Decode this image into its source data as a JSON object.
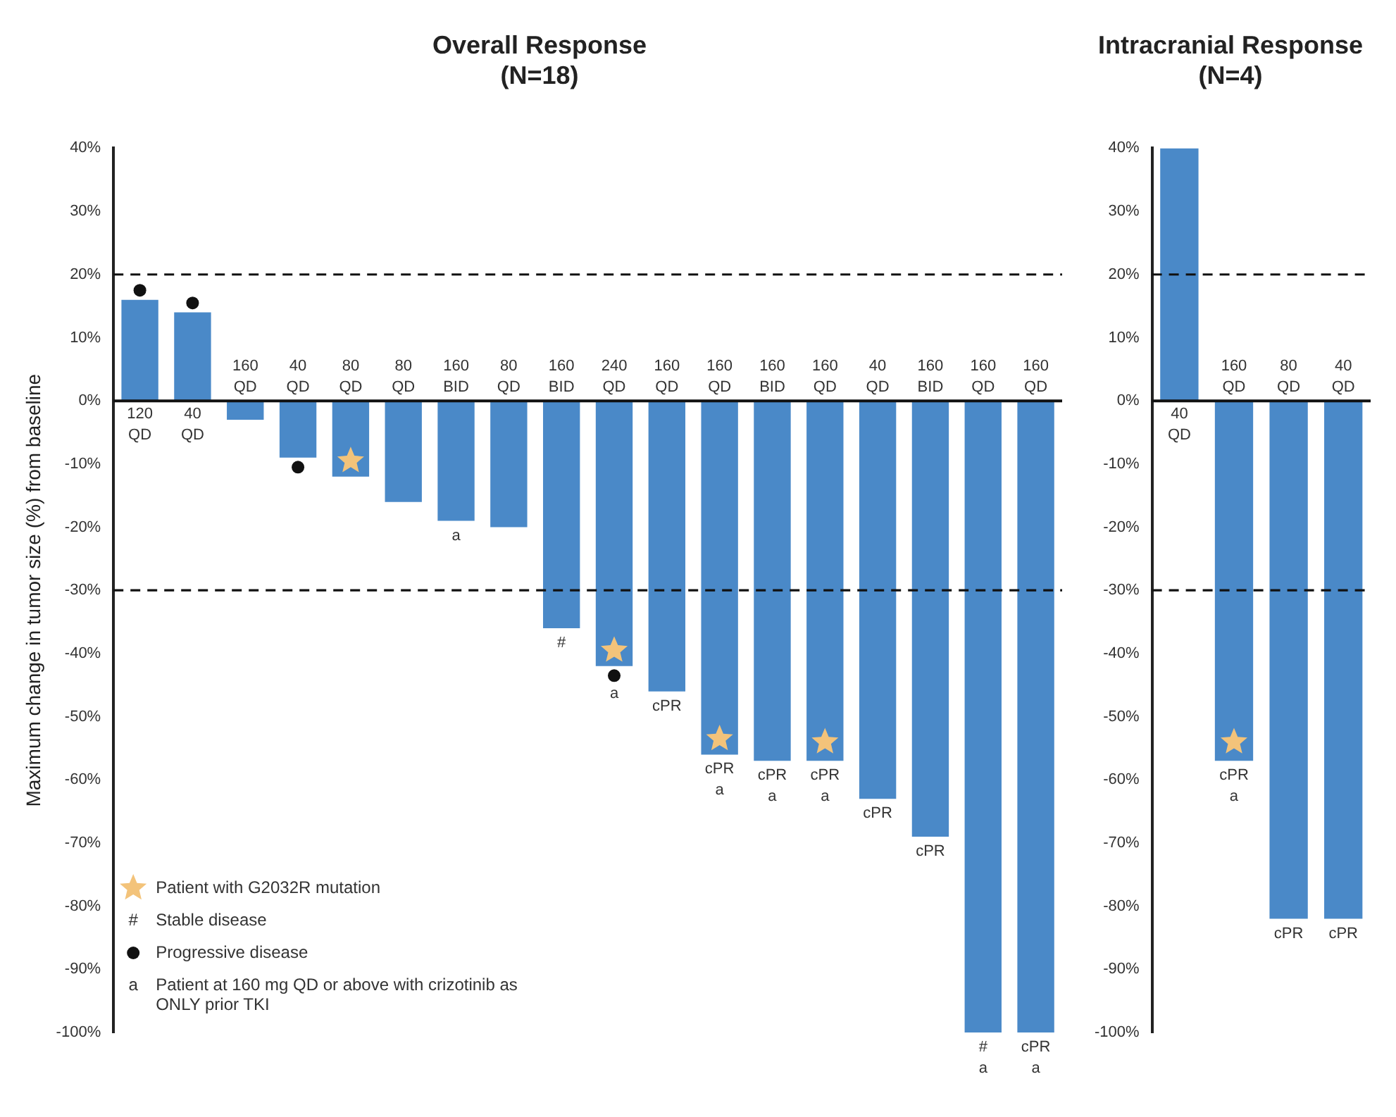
{
  "chart_data": [
    {
      "type": "bar",
      "title": "Overall Response",
      "subtitle": "(N=18)",
      "ylabel": "Maximum change in tumor size (%) from baseline",
      "categories": [
        "120 QD",
        "40 QD",
        "160 QD",
        "40 QD",
        "80 QD",
        "80 QD",
        "160 BID",
        "80 QD",
        "160 BID",
        "240 QD",
        "160 QD",
        "160 QD",
        "160 BID",
        "160 QD",
        "40 QD",
        "160 BID",
        "160 QD",
        "160 QD"
      ],
      "series": [
        {
          "color": "#4a89c8",
          "values": [
            16,
            14,
            -3,
            -9,
            -12,
            -16,
            -19,
            -20,
            -36,
            -42,
            -46,
            -56,
            -57,
            -57,
            -63,
            -69,
            -100,
            -100
          ],
          "value_labels": [
            null,
            null,
            null,
            null,
            null,
            null,
            "a",
            null,
            "#",
            "a",
            "cPR",
            "cPR\na",
            "cPR\na",
            "cPR\na",
            "cPR",
            "cPR",
            "#\na",
            "cPR\na"
          ]
        },
        {
          "type": "scatter",
          "name": "Patient with G2032R mutation",
          "color": "#f3c37a",
          "marker": "star",
          "values": [
            null,
            null,
            null,
            null,
            -9.5,
            null,
            null,
            null,
            null,
            -39.5,
            null,
            -53.5,
            null,
            -54,
            null,
            null,
            null,
            null
          ]
        },
        {
          "type": "scatter",
          "name": "Progressive disease",
          "color": "#111111",
          "marker": "circle",
          "values": [
            17.5,
            15.5,
            null,
            -10.5,
            null,
            null,
            null,
            null,
            null,
            -43.5,
            null,
            null,
            null,
            null,
            null,
            null,
            null,
            null
          ]
        }
      ],
      "ylim": [
        -100,
        40
      ],
      "yticks": [
        {
          "value": -100,
          "label": "-100%"
        },
        {
          "value": -90,
          "label": "-90%"
        },
        {
          "value": -80,
          "label": "-80%"
        },
        {
          "value": -70,
          "label": "-70%"
        },
        {
          "value": -60,
          "label": "-60%"
        },
        {
          "value": -50,
          "label": "-50%"
        },
        {
          "value": -40,
          "label": "-40%"
        },
        {
          "value": -30,
          "label": "-30%"
        },
        {
          "value": -20,
          "label": "-20%"
        },
        {
          "value": -10,
          "label": "-10%"
        },
        {
          "value": 0,
          "label": "0%"
        },
        {
          "value": 10,
          "label": "10%"
        },
        {
          "value": 20,
          "label": "20%"
        },
        {
          "value": 30,
          "label": "30%"
        },
        {
          "value": 40,
          "label": "40%"
        }
      ],
      "ref_lines": [
        {
          "axis": "y",
          "value": 20,
          "line_style": "dashed",
          "color": "#111111"
        },
        {
          "axis": "y",
          "value": -30,
          "line_style": "dashed",
          "color": "#111111"
        }
      ],
      "annotations": [
        "# Stable disease",
        "a Patient at 160 mg QD or above with crizotinib as ONLY prior TKI"
      ],
      "legend": "bottom left",
      "grid": false
    },
    {
      "type": "bar",
      "title": "Intracranial Response",
      "subtitle": "(N=4)",
      "categories": [
        "40 QD",
        "160 QD",
        "80 QD",
        "40 QD"
      ],
      "series": [
        {
          "color": "#4a89c8",
          "values": [
            40,
            -57,
            -82,
            -82
          ],
          "value_labels": [
            null,
            "cPR\na",
            "cPR",
            "cPR"
          ]
        },
        {
          "type": "scatter",
          "color": "#f3c37a",
          "marker": "star",
          "values": [
            null,
            -54,
            null,
            null
          ]
        }
      ],
      "ylim": [
        -100,
        40
      ],
      "yticks": [
        {
          "value": -100,
          "label": "-100%"
        },
        {
          "value": -90,
          "label": "-90%"
        },
        {
          "value": -80,
          "label": "-80%"
        },
        {
          "value": -70,
          "label": "-70%"
        },
        {
          "value": -60,
          "label": "-60%"
        },
        {
          "value": -50,
          "label": "-50%"
        },
        {
          "value": -40,
          "label": "-40%"
        },
        {
          "value": -30,
          "label": "-30%"
        },
        {
          "value": -20,
          "label": "-20%"
        },
        {
          "value": -10,
          "label": "-10%"
        },
        {
          "value": 0,
          "label": "0%"
        },
        {
          "value": 10,
          "label": "10%"
        },
        {
          "value": 20,
          "label": "20%"
        },
        {
          "value": 30,
          "label": "30%"
        },
        {
          "value": 40,
          "label": "40%"
        }
      ],
      "ref_lines": [
        {
          "axis": "y",
          "value": 20,
          "line_style": "dashed",
          "color": "#111111"
        },
        {
          "axis": "y",
          "value": -30,
          "line_style": "dashed",
          "color": "#111111"
        }
      ],
      "legend": false,
      "grid": false
    }
  ]
}
